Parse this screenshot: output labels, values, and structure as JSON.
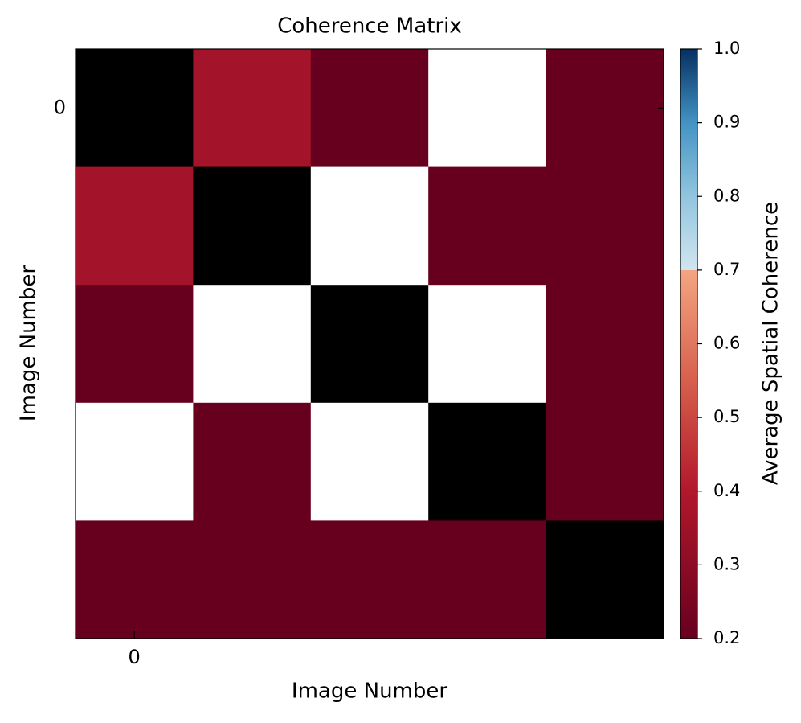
{
  "chart_data": {
    "type": "heatmap",
    "title": "Coherence Matrix",
    "x_label": "Image Number",
    "y_label": "Image Number",
    "values": [
      [
        null,
        0.36,
        0.2,
        0.1,
        0.2
      ],
      [
        0.36,
        null,
        0.1,
        0.2,
        0.2
      ],
      [
        0.2,
        0.1,
        null,
        0.1,
        0.2
      ],
      [
        0.1,
        0.2,
        0.1,
        null,
        0.2
      ],
      [
        0.2,
        0.2,
        0.2,
        0.2,
        null
      ]
    ],
    "xlim": [
      -0.5,
      4.5
    ],
    "ylim": [
      -0.5,
      4.5
    ],
    "invert_y": true,
    "xticks": [
      0
    ],
    "yticks": [
      0
    ],
    "colorbar_label": "Average Spatial Coherence",
    "clim": [
      0.2,
      1.0
    ],
    "cticks": [
      0.2,
      0.3,
      0.4,
      0.5,
      0.6,
      0.7,
      0.8,
      0.9,
      {
        "value": 1.0,
        "label": "1.0"
      }
    ],
    "colorscale": [
      [
        0.2,
        "#67001f"
      ],
      [
        0.4,
        "#b2182b"
      ],
      [
        0.55,
        "#d6604d"
      ],
      [
        0.7,
        "#f4a582"
      ],
      [
        0.7,
        "#d1e5f0"
      ],
      [
        0.8,
        "#92c5de"
      ],
      [
        0.9,
        "#4393c3"
      ],
      [
        1.0,
        "#053061"
      ]
    ],
    "bad_color": "#000000",
    "under_color": "#ffffff"
  }
}
